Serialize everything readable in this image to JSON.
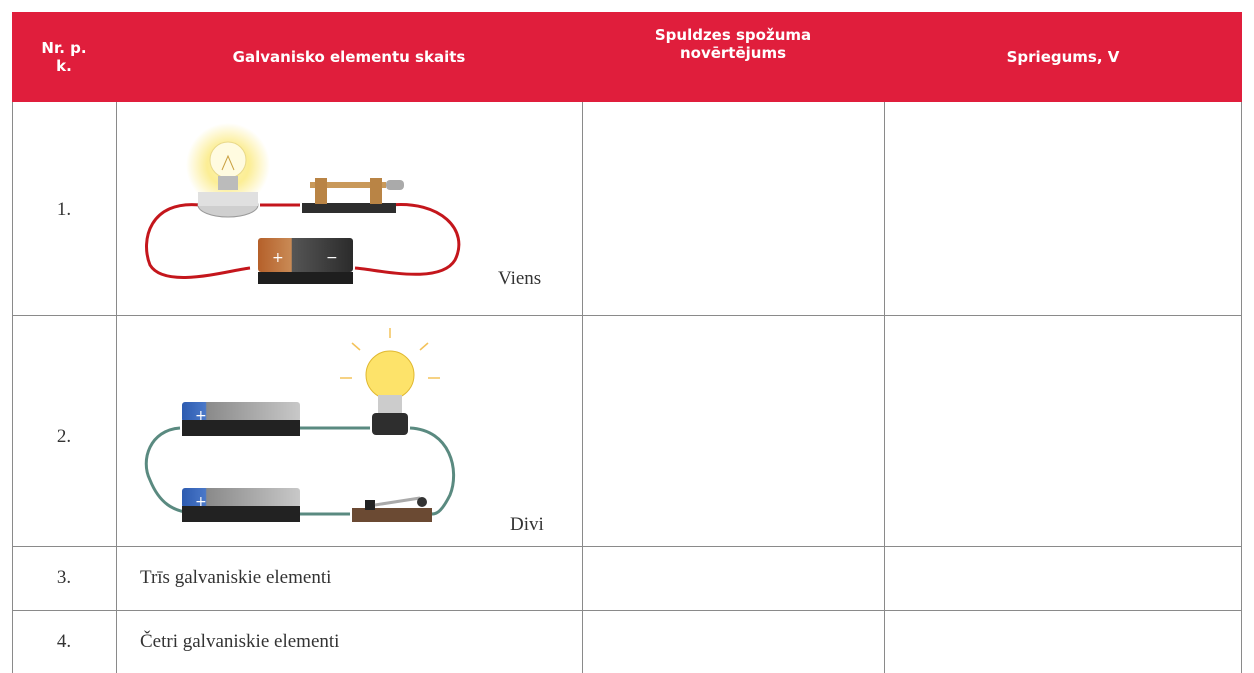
{
  "table": {
    "header": [
      "Nr. p. k.",
      "Galvanisko elementu skaits",
      "Spuldzes spožuma novērtējums",
      "Spriegums, V"
    ],
    "rows": [
      {
        "number": "1.",
        "label": "Viens"
      },
      {
        "number": "2.",
        "label": "Divi"
      },
      {
        "number": "3.",
        "label": "Trīs galvaniskie elementi"
      },
      {
        "number": "4.",
        "label": "Četri galvaniskie elementi"
      }
    ]
  }
}
